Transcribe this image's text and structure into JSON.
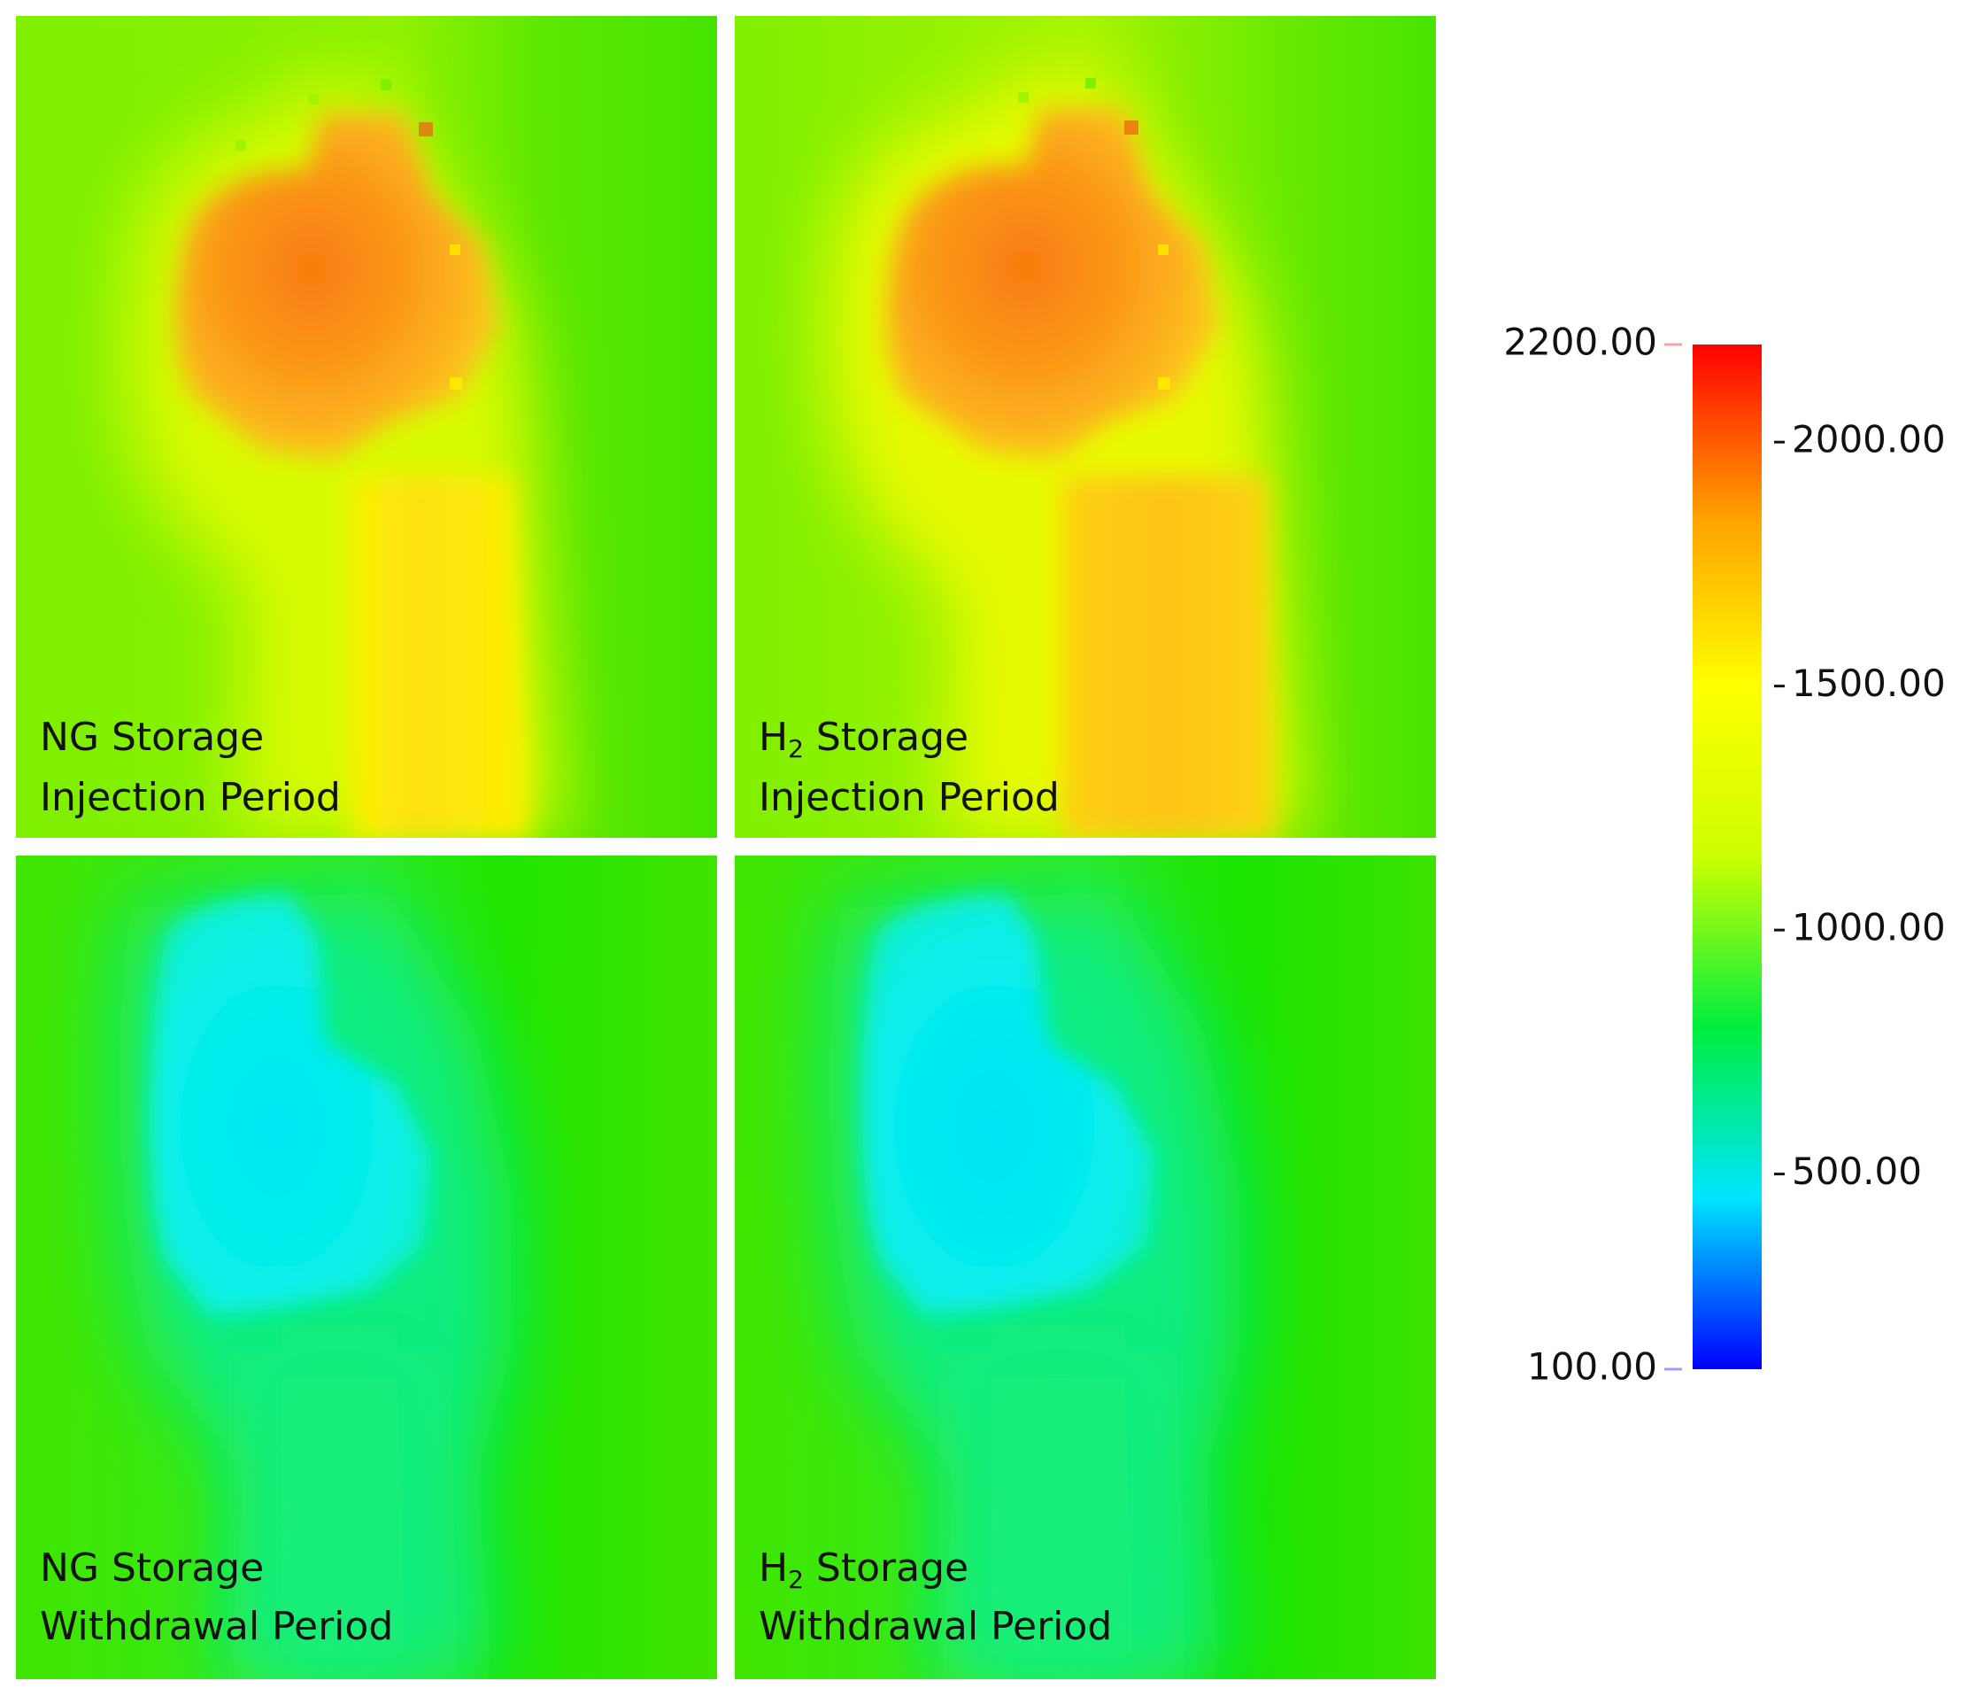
{
  "panels": [
    {
      "line1": "NG Storage",
      "line2": "Injection Period"
    },
    {
      "line1_pre": "H",
      "line1_sub": "2",
      "line1_post": " Storage",
      "line2": "Injection Period"
    },
    {
      "line1": "NG Storage",
      "line2": "Withdrawal Period"
    },
    {
      "line1_pre": "H",
      "line1_sub": "2",
      "line1_post": " Storage",
      "line2": "Withdrawal Period"
    }
  ],
  "colorbar": {
    "min_label": "100.00",
    "max_label": "2200.00",
    "tick_labels": [
      "2000.00",
      "1500.00",
      "1000.00",
      "500.00"
    ]
  },
  "chart_data": {
    "type": "heatmap",
    "colorscale": [
      "#0000ff",
      "#00e5ff",
      "#00ee40",
      "#ccff00",
      "#ffff00",
      "#ffa000",
      "#ff0000"
    ],
    "range": [
      100,
      2200
    ],
    "ticks": [
      100,
      500,
      1000,
      1500,
      2000,
      2200
    ],
    "panels": [
      {
        "name": "NG Storage Injection Period",
        "background": 1300,
        "plume_peak": 2050,
        "plume_edge": 1650
      },
      {
        "name": "H2 Storage Injection Period",
        "background": 1300,
        "plume_peak": 2050,
        "plume_edge": 1700
      },
      {
        "name": "NG Storage Withdrawal Period",
        "background": 1150,
        "plume_peak": 650,
        "plume_edge": 1000
      },
      {
        "name": "H2 Storage Withdrawal Period",
        "background": 1150,
        "plume_peak": 650,
        "plume_edge": 1000
      }
    ]
  }
}
